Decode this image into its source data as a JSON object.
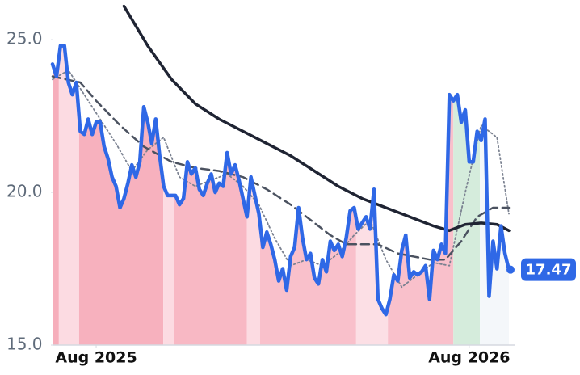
{
  "chart_data": {
    "type": "line",
    "xlim": [
      0,
      115
    ],
    "ylim": [
      15,
      26.3
    ],
    "xticks": [
      {
        "value": 11,
        "label": "Aug 2025"
      },
      {
        "value": 105,
        "label": "Aug 2026"
      }
    ],
    "yticks": [
      {
        "value": 15,
        "label": "15.0"
      },
      {
        "value": 20,
        "label": "20.0"
      },
      {
        "value": 25,
        "label": "25.0"
      }
    ],
    "zones": [
      {
        "start": 0,
        "end": 1.6,
        "color": "#f6aebb"
      },
      {
        "start": 1.6,
        "end": 6.7,
        "color": "#fcdbe2"
      },
      {
        "start": 6.7,
        "end": 27.9,
        "color": "#f7b1be"
      },
      {
        "start": 27.9,
        "end": 30.7,
        "color": "#fcdbe2"
      },
      {
        "start": 30.7,
        "end": 49,
        "color": "#f8b8c4"
      },
      {
        "start": 49,
        "end": 52.3,
        "color": "#fcdbe2"
      },
      {
        "start": 52.3,
        "end": 76.5,
        "color": "#f9c0cb"
      },
      {
        "start": 76.5,
        "end": 84.5,
        "color": "#fcdfe5"
      },
      {
        "start": 84.5,
        "end": 101,
        "color": "#f9c0cb"
      },
      {
        "start": 101,
        "end": 107.7,
        "color": "#d5ecdc"
      },
      {
        "start": 107.7,
        "end": 115,
        "color": "#f4f7fa"
      }
    ],
    "series": [
      {
        "style": "dotted",
        "color": "#7b8291",
        "x": [
          0,
          4,
          8,
          12,
          16,
          20,
          24,
          28,
          32,
          36,
          40,
          44,
          48,
          52,
          56,
          60,
          64,
          68,
          72,
          76,
          80,
          84,
          88,
          92,
          96,
          100,
          104,
          108,
          112,
          115
        ],
        "values": [
          23.7,
          24.0,
          23.2,
          22.4,
          21.6,
          20.7,
          21.4,
          21.8,
          20.5,
          20.2,
          20.4,
          20.6,
          20.2,
          19.6,
          18.5,
          17.6,
          17.8,
          17.6,
          18.0,
          18.6,
          19.1,
          17.8,
          16.9,
          17.3,
          17.7,
          17.6,
          20.0,
          22.2,
          21.8,
          19.3
        ]
      },
      {
        "style": "dashed",
        "color": "#4b5260",
        "x": [
          0,
          7,
          11,
          17,
          23,
          30,
          36,
          42,
          48,
          54,
          60,
          66,
          70,
          74,
          78,
          82,
          87,
          91,
          95,
          99,
          103,
          107,
          111,
          115
        ],
        "values": [
          23.8,
          23.6,
          23.0,
          22.2,
          21.5,
          21.0,
          20.8,
          20.7,
          20.5,
          20.1,
          19.6,
          19.0,
          18.6,
          18.3,
          18.3,
          18.3,
          18.0,
          17.9,
          17.8,
          17.8,
          18.4,
          19.2,
          19.5,
          19.5
        ]
      },
      {
        "style": "solid",
        "color": "#1f2433",
        "width": 3.5,
        "x": [
          18,
          24,
          30,
          36,
          42,
          48,
          54,
          60,
          66,
          72,
          78,
          84,
          90,
          96,
          100,
          104,
          108,
          112,
          115
        ],
        "values": [
          26.1,
          24.8,
          23.7,
          22.9,
          22.4,
          22.0,
          21.6,
          21.2,
          20.7,
          20.2,
          19.8,
          19.5,
          19.2,
          18.9,
          18.75,
          18.95,
          19.0,
          18.95,
          18.75
        ]
      },
      {
        "style": "main",
        "color": "#2f68e6",
        "width": 4.5,
        "label_last": true,
        "values": [
          24.2,
          23.8,
          24.8,
          24.8,
          23.6,
          23.2,
          23.6,
          22.0,
          21.9,
          22.4,
          21.9,
          22.3,
          22.3,
          21.5,
          21.1,
          20.5,
          20.2,
          19.5,
          19.8,
          20.3,
          20.9,
          20.5,
          21.0,
          22.8,
          22.3,
          21.6,
          22.4,
          21.2,
          20.2,
          19.9,
          19.9,
          19.9,
          19.6,
          19.8,
          21.0,
          20.6,
          20.8,
          20.1,
          19.9,
          20.3,
          20.6,
          20.0,
          20.3,
          20.2,
          21.3,
          20.6,
          20.9,
          20.4,
          19.8,
          19.2,
          20.5,
          19.9,
          19.3,
          18.2,
          18.7,
          18.3,
          17.8,
          17.1,
          17.5,
          16.8,
          17.9,
          18.2,
          19.5,
          18.5,
          17.8,
          18.0,
          17.2,
          17.0,
          17.8,
          17.4,
          18.4,
          18.1,
          18.3,
          17.9,
          18.5,
          19.4,
          19.5,
          18.8,
          19.0,
          19.2,
          18.8,
          20.1,
          16.5,
          16.2,
          16.0,
          16.5,
          17.3,
          17.1,
          18.1,
          18.6,
          17.2,
          17.4,
          17.3,
          17.4,
          17.6,
          16.5,
          18.1,
          17.8,
          18.3,
          18.0,
          23.2,
          23.0,
          23.2,
          22.3,
          22.7,
          21.0,
          21.0,
          22.0,
          21.7,
          22.4,
          16.6,
          18.4,
          17.5,
          18.9,
          18.0,
          17.47
        ]
      }
    ]
  }
}
